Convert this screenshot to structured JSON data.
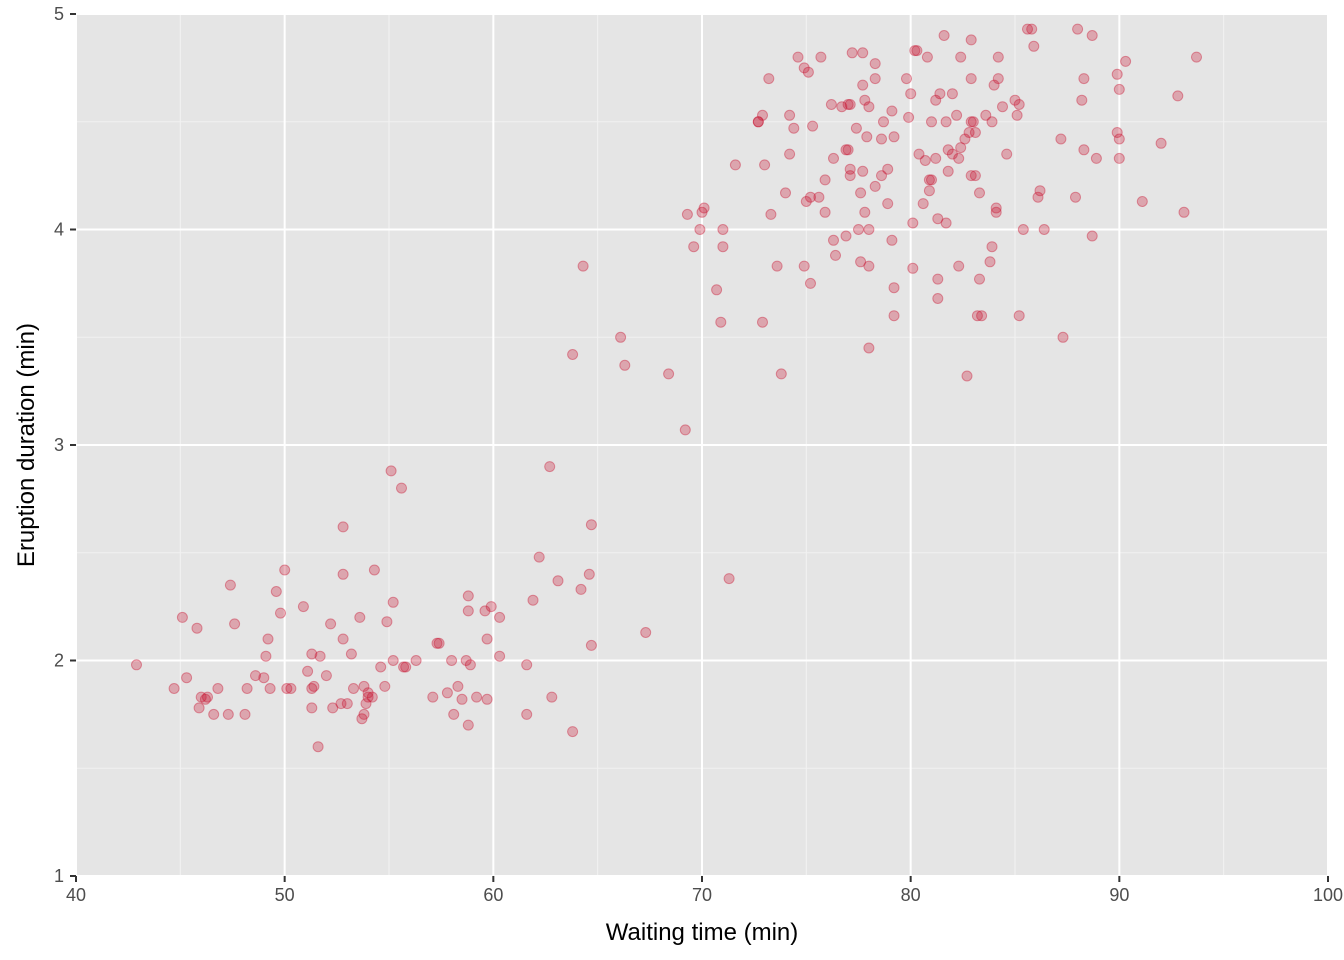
{
  "colors": {
    "panel_background": "#e5e5e5",
    "grid_major": "#ffffff",
    "grid_minor": "#f2f2f2",
    "point": "#c8102e",
    "tick_text": "#4d4d4d",
    "axis_ticks": "#333333"
  },
  "chart_data": {
    "type": "scatter",
    "xlabel": "Waiting time (min)",
    "ylabel": "Eruption duration (min)",
    "xlim": [
      40,
      100
    ],
    "ylim": [
      1,
      5
    ],
    "x_ticks": [
      40,
      50,
      60,
      70,
      80,
      90,
      100
    ],
    "y_ticks": [
      1,
      2,
      3,
      4,
      5
    ],
    "grid": true,
    "point_opacity": 0.3,
    "points": [
      [
        42.9,
        1.98
      ],
      [
        44.7,
        1.87
      ],
      [
        45.1,
        2.2
      ],
      [
        45.3,
        1.92
      ],
      [
        45.8,
        2.15
      ],
      [
        45.9,
        1.78
      ],
      [
        46.0,
        1.83
      ],
      [
        46.2,
        1.82
      ],
      [
        46.3,
        1.83
      ],
      [
        46.6,
        1.75
      ],
      [
        46.8,
        1.87
      ],
      [
        47.3,
        1.75
      ],
      [
        47.4,
        2.35
      ],
      [
        47.6,
        2.17
      ],
      [
        48.1,
        1.75
      ],
      [
        48.2,
        1.87
      ],
      [
        48.6,
        1.93
      ],
      [
        49.0,
        1.92
      ],
      [
        49.1,
        2.02
      ],
      [
        49.2,
        2.1
      ],
      [
        49.3,
        1.87
      ],
      [
        49.6,
        2.32
      ],
      [
        49.8,
        2.22
      ],
      [
        50.0,
        2.42
      ],
      [
        50.1,
        1.87
      ],
      [
        50.3,
        1.87
      ],
      [
        50.9,
        2.25
      ],
      [
        51.1,
        1.95
      ],
      [
        51.3,
        1.78
      ],
      [
        51.3,
        1.87
      ],
      [
        51.3,
        2.03
      ],
      [
        51.4,
        1.88
      ],
      [
        51.6,
        1.6
      ],
      [
        51.7,
        2.02
      ],
      [
        52.0,
        1.93
      ],
      [
        52.2,
        2.17
      ],
      [
        52.3,
        1.78
      ],
      [
        52.7,
        1.8
      ],
      [
        52.8,
        2.62
      ],
      [
        52.8,
        2.4
      ],
      [
        52.8,
        2.1
      ],
      [
        53.0,
        1.8
      ],
      [
        53.2,
        2.03
      ],
      [
        53.3,
        1.87
      ],
      [
        53.6,
        2.2
      ],
      [
        53.7,
        1.73
      ],
      [
        53.8,
        1.88
      ],
      [
        53.8,
        1.75
      ],
      [
        53.9,
        1.8
      ],
      [
        54.0,
        1.85
      ],
      [
        54.0,
        1.83
      ],
      [
        54.2,
        1.83
      ],
      [
        54.3,
        2.42
      ],
      [
        54.6,
        1.97
      ],
      [
        54.8,
        1.88
      ],
      [
        54.9,
        2.18
      ],
      [
        55.1,
        2.88
      ],
      [
        55.2,
        2.27
      ],
      [
        55.2,
        2.0
      ],
      [
        55.6,
        2.8
      ],
      [
        55.7,
        1.97
      ],
      [
        55.8,
        1.97
      ],
      [
        56.3,
        2.0
      ],
      [
        57.1,
        1.83
      ],
      [
        57.3,
        2.08
      ],
      [
        57.4,
        2.08
      ],
      [
        57.8,
        1.85
      ],
      [
        58.0,
        2.0
      ],
      [
        58.1,
        1.75
      ],
      [
        58.3,
        1.88
      ],
      [
        58.5,
        1.82
      ],
      [
        58.7,
        2.0
      ],
      [
        58.8,
        2.3
      ],
      [
        58.8,
        2.23
      ],
      [
        58.8,
        1.7
      ],
      [
        58.9,
        1.98
      ],
      [
        59.2,
        1.83
      ],
      [
        59.6,
        2.23
      ],
      [
        59.7,
        2.1
      ],
      [
        59.7,
        1.82
      ],
      [
        59.9,
        2.25
      ],
      [
        60.3,
        2.2
      ],
      [
        60.3,
        2.02
      ],
      [
        61.6,
        1.98
      ],
      [
        61.6,
        1.75
      ],
      [
        61.9,
        2.28
      ],
      [
        62.2,
        2.48
      ],
      [
        62.7,
        2.9
      ],
      [
        62.8,
        1.83
      ],
      [
        63.1,
        2.37
      ],
      [
        63.8,
        3.42
      ],
      [
        63.8,
        1.67
      ],
      [
        64.2,
        2.33
      ],
      [
        64.3,
        3.83
      ],
      [
        64.6,
        2.4
      ],
      [
        64.7,
        2.63
      ],
      [
        64.7,
        2.07
      ],
      [
        66.1,
        3.5
      ],
      [
        66.3,
        3.37
      ],
      [
        67.3,
        2.13
      ],
      [
        68.4,
        3.33
      ],
      [
        69.2,
        3.07
      ],
      [
        69.3,
        4.07
      ],
      [
        69.6,
        3.92
      ],
      [
        69.9,
        4.0
      ],
      [
        70.0,
        4.08
      ],
      [
        70.1,
        4.1
      ],
      [
        70.7,
        3.72
      ],
      [
        70.9,
        3.57
      ],
      [
        71.0,
        4.0
      ],
      [
        71.0,
        3.92
      ],
      [
        71.3,
        2.38
      ],
      [
        71.6,
        4.3
      ],
      [
        72.7,
        4.5
      ],
      [
        72.7,
        4.5
      ],
      [
        72.9,
        3.57
      ],
      [
        72.9,
        4.53
      ],
      [
        73.0,
        4.3
      ],
      [
        73.2,
        4.7
      ],
      [
        73.3,
        4.07
      ],
      [
        73.6,
        3.83
      ],
      [
        73.8,
        3.33
      ],
      [
        74.0,
        4.17
      ],
      [
        74.2,
        4.53
      ],
      [
        74.2,
        4.35
      ],
      [
        74.4,
        4.47
      ],
      [
        74.6,
        4.8
      ],
      [
        74.9,
        4.75
      ],
      [
        74.9,
        3.83
      ],
      [
        75.0,
        4.13
      ],
      [
        75.1,
        4.73
      ],
      [
        75.2,
        3.75
      ],
      [
        75.2,
        4.15
      ],
      [
        75.3,
        4.48
      ],
      [
        75.6,
        4.15
      ],
      [
        75.7,
        4.8
      ],
      [
        75.9,
        4.23
      ],
      [
        75.9,
        4.08
      ],
      [
        76.2,
        4.58
      ],
      [
        76.3,
        3.95
      ],
      [
        76.3,
        4.33
      ],
      [
        76.4,
        3.88
      ],
      [
        76.7,
        4.57
      ],
      [
        76.9,
        4.37
      ],
      [
        76.9,
        3.97
      ],
      [
        77.0,
        4.58
      ],
      [
        77.0,
        4.37
      ],
      [
        77.1,
        4.28
      ],
      [
        77.1,
        4.58
      ],
      [
        77.1,
        4.25
      ],
      [
        77.2,
        4.82
      ],
      [
        77.4,
        4.47
      ],
      [
        77.5,
        4.0
      ],
      [
        77.6,
        4.17
      ],
      [
        77.6,
        3.85
      ],
      [
        77.7,
        4.82
      ],
      [
        77.7,
        4.27
      ],
      [
        77.7,
        4.67
      ],
      [
        77.8,
        4.6
      ],
      [
        77.8,
        4.08
      ],
      [
        77.9,
        4.43
      ],
      [
        78.0,
        3.45
      ],
      [
        78.0,
        4.57
      ],
      [
        78.0,
        4.0
      ],
      [
        78.0,
        3.83
      ],
      [
        78.3,
        4.77
      ],
      [
        78.3,
        4.7
      ],
      [
        78.3,
        4.2
      ],
      [
        78.6,
        4.25
      ],
      [
        78.6,
        4.42
      ],
      [
        78.7,
        4.5
      ],
      [
        78.9,
        4.12
      ],
      [
        78.9,
        4.28
      ],
      [
        79.1,
        4.55
      ],
      [
        79.1,
        3.95
      ],
      [
        79.2,
        3.73
      ],
      [
        79.2,
        3.6
      ],
      [
        79.2,
        4.43
      ],
      [
        79.8,
        4.7
      ],
      [
        79.9,
        4.52
      ],
      [
        80.0,
        4.63
      ],
      [
        80.1,
        3.82
      ],
      [
        80.1,
        4.03
      ],
      [
        80.2,
        4.83
      ],
      [
        80.3,
        4.83
      ],
      [
        80.4,
        4.35
      ],
      [
        80.6,
        4.12
      ],
      [
        80.7,
        4.32
      ],
      [
        80.8,
        4.8
      ],
      [
        80.9,
        4.23
      ],
      [
        80.9,
        4.18
      ],
      [
        81.0,
        4.5
      ],
      [
        81.0,
        4.23
      ],
      [
        81.2,
        4.6
      ],
      [
        81.2,
        4.33
      ],
      [
        81.3,
        3.77
      ],
      [
        81.3,
        3.68
      ],
      [
        81.3,
        4.05
      ],
      [
        81.4,
        4.63
      ],
      [
        81.6,
        4.9
      ],
      [
        81.7,
        4.03
      ],
      [
        81.7,
        4.5
      ],
      [
        81.8,
        4.27
      ],
      [
        81.8,
        4.37
      ],
      [
        82.0,
        4.35
      ],
      [
        82.0,
        4.63
      ],
      [
        82.2,
        4.53
      ],
      [
        82.3,
        4.33
      ],
      [
        82.3,
        3.83
      ],
      [
        82.4,
        4.38
      ],
      [
        82.4,
        4.8
      ],
      [
        82.6,
        4.42
      ],
      [
        82.7,
        3.32
      ],
      [
        82.8,
        4.45
      ],
      [
        82.9,
        4.5
      ],
      [
        82.9,
        4.25
      ],
      [
        82.9,
        4.88
      ],
      [
        82.9,
        4.7
      ],
      [
        83.0,
        4.5
      ],
      [
        83.1,
        4.45
      ],
      [
        83.1,
        4.25
      ],
      [
        83.2,
        3.6
      ],
      [
        83.3,
        4.17
      ],
      [
        83.3,
        3.77
      ],
      [
        83.4,
        3.6
      ],
      [
        83.6,
        4.53
      ],
      [
        83.8,
        3.85
      ],
      [
        83.9,
        3.92
      ],
      [
        83.9,
        4.5
      ],
      [
        84.0,
        4.67
      ],
      [
        84.1,
        4.1
      ],
      [
        84.1,
        4.08
      ],
      [
        84.2,
        4.7
      ],
      [
        84.2,
        4.8
      ],
      [
        84.4,
        4.57
      ],
      [
        84.6,
        4.35
      ],
      [
        85.0,
        4.6
      ],
      [
        85.1,
        4.53
      ],
      [
        85.2,
        3.6
      ],
      [
        85.2,
        4.58
      ],
      [
        85.4,
        4.0
      ],
      [
        85.6,
        4.93
      ],
      [
        85.8,
        4.93
      ],
      [
        85.9,
        4.85
      ],
      [
        86.1,
        4.15
      ],
      [
        86.2,
        4.18
      ],
      [
        86.4,
        4.0
      ],
      [
        87.2,
        4.42
      ],
      [
        87.3,
        3.5
      ],
      [
        87.9,
        4.15
      ],
      [
        88.0,
        4.93
      ],
      [
        88.2,
        4.6
      ],
      [
        88.3,
        4.37
      ],
      [
        88.3,
        4.7
      ],
      [
        88.7,
        4.9
      ],
      [
        88.7,
        3.97
      ],
      [
        88.9,
        4.33
      ],
      [
        89.9,
        4.72
      ],
      [
        89.9,
        4.45
      ],
      [
        90.0,
        4.33
      ],
      [
        90.0,
        4.65
      ],
      [
        90.0,
        4.42
      ],
      [
        90.3,
        4.78
      ],
      [
        91.1,
        4.13
      ],
      [
        92.0,
        4.4
      ],
      [
        92.8,
        4.62
      ],
      [
        93.1,
        4.08
      ],
      [
        93.7,
        4.8
      ]
    ]
  }
}
